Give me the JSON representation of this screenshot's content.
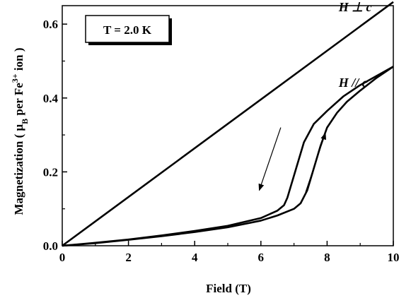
{
  "chart_data": {
    "type": "line",
    "xlabel": "Field (T)",
    "ylabel_main": "Magnetization ( μ",
    "ylabel_sub": "B",
    "ylabel_mid": " per Fe",
    "ylabel_sup": "3+",
    "ylabel_end": " ion )",
    "xlim": [
      0,
      10
    ],
    "ylim": [
      0,
      0.65
    ],
    "xticks": [
      "0",
      "2",
      "4",
      "6",
      "8",
      "10"
    ],
    "yticks": [
      "0.0",
      "0.2",
      "0.4",
      "0.6"
    ],
    "temperature_label": "T = 2.0 K",
    "annotations": [
      {
        "text": "H ⊥ c",
        "x": 8.35,
        "y": 0.635
      },
      {
        "text": "H // c",
        "x": 8.35,
        "y": 0.43
      }
    ],
    "arrows": [
      {
        "name": "sweep-down-arrow",
        "from": [
          6.6,
          0.32
        ],
        "to": [
          5.95,
          0.15
        ]
      },
      {
        "name": "sweep-up-arrow",
        "from": [
          7.35,
          0.145
        ],
        "to": [
          7.95,
          0.305
        ]
      }
    ],
    "series": [
      {
        "name": "H ⊥ c",
        "x": [
          0,
          10
        ],
        "y": [
          0,
          0.66
        ]
      },
      {
        "name": "H // c",
        "branch": "up",
        "x": [
          0,
          1,
          2,
          3,
          4,
          5,
          6,
          6.5,
          7.0,
          7.2,
          7.4,
          7.6,
          7.8,
          8.0,
          8.3,
          8.6,
          9.0,
          9.5,
          10.0
        ],
        "y": [
          0,
          0.007,
          0.016,
          0.026,
          0.037,
          0.05,
          0.068,
          0.082,
          0.1,
          0.115,
          0.15,
          0.21,
          0.27,
          0.32,
          0.36,
          0.39,
          0.42,
          0.455,
          0.485
        ]
      },
      {
        "name": "H // c",
        "branch": "down",
        "x": [
          10.0,
          9.5,
          9.0,
          8.5,
          8.0,
          7.6,
          7.3,
          7.1,
          6.9,
          6.8,
          6.7,
          6.5,
          6.0,
          5.0,
          4.0,
          3.0,
          2.0,
          1.0,
          0
        ],
        "y": [
          0.485,
          0.46,
          0.435,
          0.405,
          0.365,
          0.33,
          0.28,
          0.22,
          0.16,
          0.13,
          0.11,
          0.095,
          0.075,
          0.054,
          0.04,
          0.028,
          0.017,
          0.008,
          0
        ]
      }
    ]
  }
}
